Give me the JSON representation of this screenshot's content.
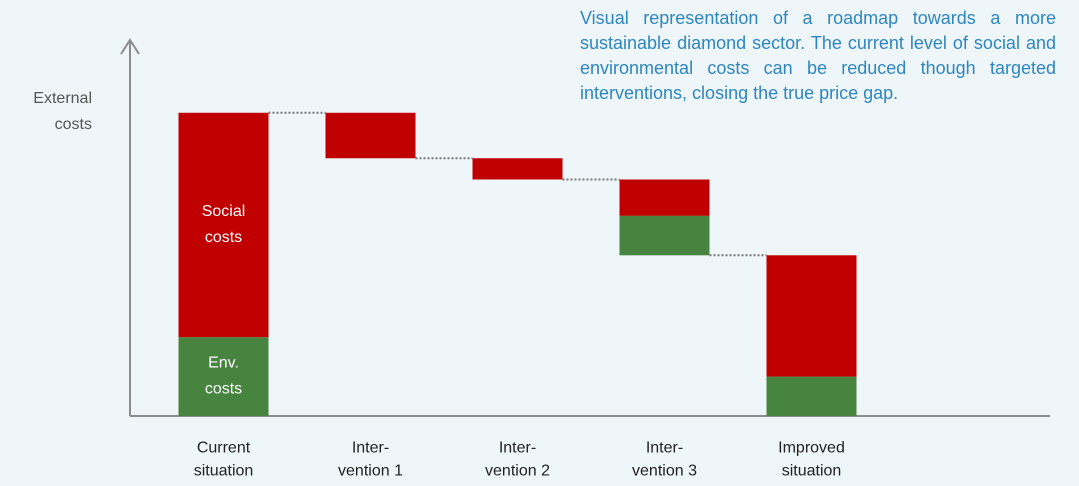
{
  "chart_data": {
    "type": "waterfall",
    "description": "Visual representation of a roadmap towards a more sustainable diamond sector. The current level of social and environmental costs can be reduced though targeted interventions, closing the true price gap.",
    "ylabel": "External\ncosts",
    "categories": [
      "Current\nsituation",
      "Inter-\nvention 1",
      "Inter-\nvention 2",
      "Inter-\nvention 3",
      "Improved\nsituation"
    ],
    "series": [
      {
        "name": "Env.\ncosts",
        "color": "#46843f",
        "values": [
          26,
          null,
          null,
          -13,
          13
        ]
      },
      {
        "name": "Social\ncosts",
        "color": "#c00000",
        "values": [
          74,
          -15,
          -7,
          -12,
          40
        ]
      }
    ],
    "ylim": [
      0,
      124
    ]
  }
}
